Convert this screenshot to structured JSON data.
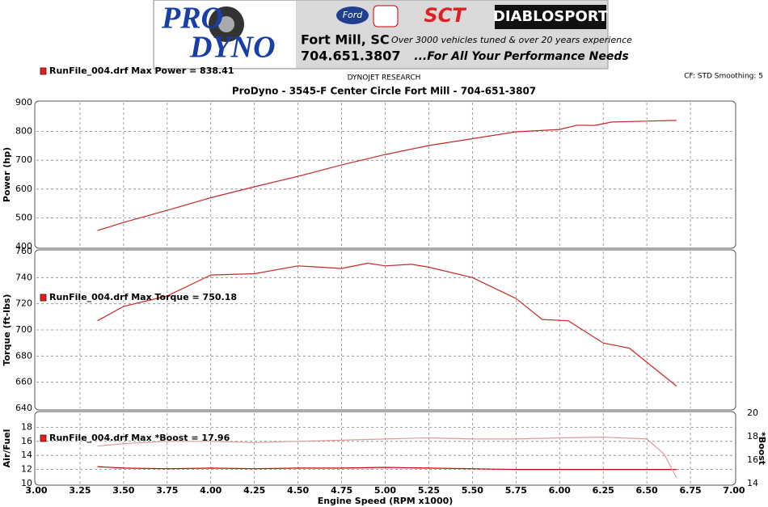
{
  "header": {
    "brand_line1": "PRO",
    "brand_line2": "DYNO",
    "city": "Fort Mill, SC",
    "phone": "704.651.3807",
    "ford": "Ford",
    "sct": "SCT",
    "diablo": "DIABLOSPORT",
    "tagline1": "Over 3000 vehicles tuned & over 20 years experience",
    "tagline2": "...For All Your Performance Needs"
  },
  "vendor": "DYNOJET RESEARCH",
  "settings": "CF: STD  Smoothing: 5",
  "title": "ProDyno - 3545-F Center Circle Fort Mill  - 704-651-3807",
  "chart_data": [
    {
      "type": "line",
      "ylabel": "Power (hp)",
      "annotation": "RunFile_004.drf Max Power = 838.41",
      "xlim": [
        3,
        7
      ],
      "ylim": [
        400,
        900
      ],
      "yticks": [
        400,
        500,
        600,
        700,
        800,
        900
      ],
      "grid": true,
      "x": [
        3.35,
        3.5,
        3.75,
        4.0,
        4.25,
        4.5,
        4.75,
        5.0,
        5.25,
        5.5,
        5.75,
        6.0,
        6.1,
        6.2,
        6.3,
        6.5,
        6.67
      ],
      "series": [
        {
          "name": "RunFile_004.drf",
          "color": "#c82828",
          "values": [
            456,
            484,
            526,
            570,
            608,
            644,
            684,
            720,
            751,
            775,
            799,
            807,
            822,
            821,
            833,
            836,
            838.41
          ]
        }
      ]
    },
    {
      "type": "line",
      "ylabel": "Torque (ft-lbs)",
      "annotation": "RunFile_004.drf Max Torque = 750.18",
      "xlim": [
        3,
        7
      ],
      "ylim": [
        640,
        760
      ],
      "yticks": [
        640,
        660,
        680,
        700,
        720,
        740,
        760
      ],
      "grid": true,
      "x": [
        3.35,
        3.5,
        3.75,
        4.0,
        4.25,
        4.5,
        4.75,
        4.9,
        5.0,
        5.15,
        5.25,
        5.5,
        5.75,
        5.9,
        6.05,
        6.25,
        6.4,
        6.67
      ],
      "series": [
        {
          "name": "RunFile_004.drf",
          "color": "#c82828",
          "values": [
            707,
            718,
            726,
            742,
            743,
            749,
            747,
            751,
            749,
            750.18,
            748,
            740,
            724,
            708,
            707,
            690,
            686,
            657
          ]
        }
      ]
    },
    {
      "type": "line",
      "ylabel": "Air/Fuel",
      "y2label": "*Boost",
      "xlabel": "Engine Speed (RPM x1000)",
      "annotation": "RunFile_004.drf Max *Boost = 17.96",
      "xlim": [
        3,
        7
      ],
      "ylim": [
        10,
        20
      ],
      "yticks": [
        10,
        12,
        14,
        16,
        18
      ],
      "y2lim": [
        14,
        20
      ],
      "y2ticks": [
        14,
        16,
        18,
        20
      ],
      "grid": true,
      "xticks": [
        {
          "value": 3,
          "label": "3.00"
        },
        {
          "value": 3.25,
          "label": "3.25"
        },
        {
          "value": 3.5,
          "label": "3.50"
        },
        {
          "value": 3.75,
          "label": "3.75"
        },
        {
          "value": 4,
          "label": "4.00"
        },
        {
          "value": 4.25,
          "label": "4.25"
        },
        {
          "value": 4.5,
          "label": "4.50"
        },
        {
          "value": 4.75,
          "label": "4.75"
        },
        {
          "value": 5,
          "label": "5.00"
        },
        {
          "value": 5.25,
          "label": "5.25"
        },
        {
          "value": 5.5,
          "label": "5.50"
        },
        {
          "value": 5.75,
          "label": "5.75"
        },
        {
          "value": 6,
          "label": "6.00"
        },
        {
          "value": 6.25,
          "label": "6.25"
        },
        {
          "value": 6.5,
          "label": "6.50"
        },
        {
          "value": 6.75,
          "label": "6.75"
        },
        {
          "value": 7,
          "label": "7.00"
        }
      ],
      "x": [
        3.35,
        3.5,
        3.75,
        4.0,
        4.25,
        4.5,
        4.75,
        5.0,
        5.25,
        5.5,
        5.75,
        6.0,
        6.25,
        6.5,
        6.6,
        6.67
      ],
      "series": [
        {
          "name": "Air/Fuel",
          "color": "#cc0000",
          "values": [
            12.4,
            12.2,
            12.1,
            12.2,
            12.1,
            12.2,
            12.2,
            12.3,
            12.2,
            12.1,
            12.0,
            12.0,
            12.0,
            12.0,
            12.0,
            12.0
          ]
        },
        {
          "name": "*Boost",
          "color": "#e39a9a",
          "axis": "y2",
          "values": [
            17.2,
            17.4,
            17.6,
            17.6,
            17.5,
            17.6,
            17.7,
            17.8,
            17.9,
            17.8,
            17.8,
            17.9,
            17.96,
            17.8,
            16.5,
            14.5
          ]
        }
      ]
    }
  ]
}
